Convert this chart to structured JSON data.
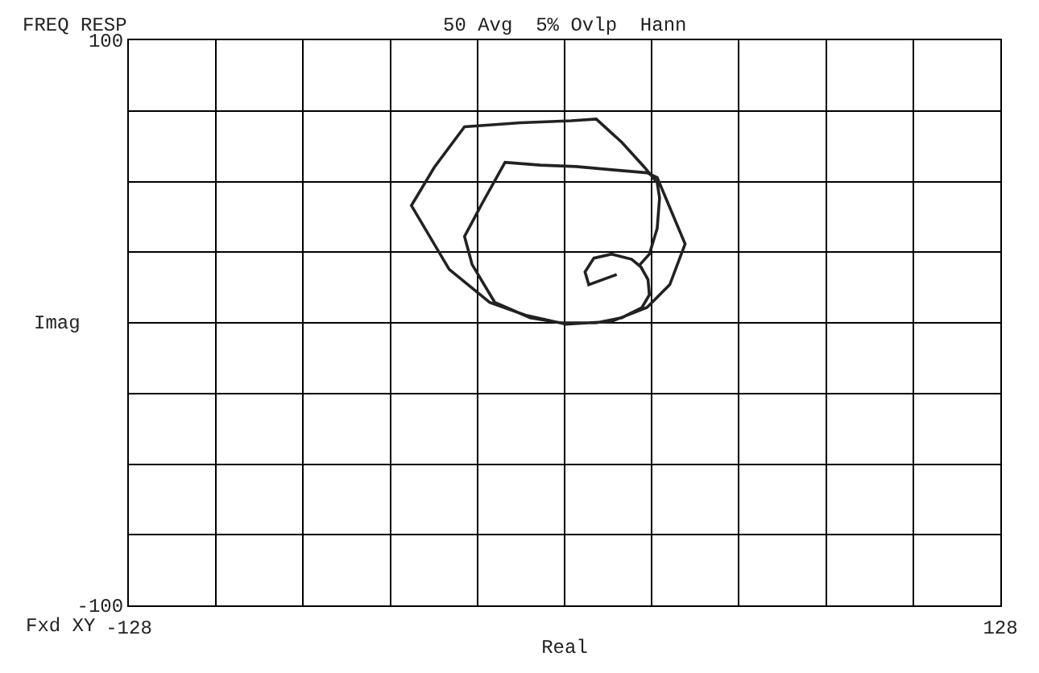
{
  "chart_data": {
    "type": "line",
    "title": "FREQ RESP",
    "subtitle": "50 Avg  5% Ovlp  Hann",
    "xlabel": "Real",
    "ylabel": "Imag",
    "annotations": [
      "Fxd XY"
    ],
    "x": [
      15.3,
      7.1,
      6.0,
      8.6,
      13.8,
      19.7,
      22.4,
      24.5,
      24.9,
      22.7,
      16.8,
      9.3,
      -1.1,
      -10.1,
      -20.5,
      -27.2,
      -29.4,
      -24.2,
      -17.5,
      -7.1,
      3.4,
      14.5,
      24.2,
      27.2,
      35.4,
      30.9,
      24.2,
      13.8,
      0.4,
      -11.5,
      -22.0,
      -33.9,
      -45.0,
      -38.3,
      -29.4,
      -13.0,
      1.9,
      9.3,
      16.8,
      23.5,
      27.2,
      27.9,
      27.2,
      24.9,
      22.0
    ],
    "series": [
      {
        "color": "#222222",
        "values": [
          17.1,
          13.5,
          18.0,
          22.9,
          24.3,
          22.5,
          19.8,
          15.3,
          9.9,
          5.4,
          1.8,
          0,
          0,
          1.8,
          7.2,
          20.7,
          30.6,
          42.3,
          56.8,
          55.8,
          55.3,
          54.1,
          53.1,
          51.4,
          27.9,
          13.5,
          5.4,
          0.5,
          -0.5,
          2.7,
          7.2,
          18.9,
          41.5,
          55.0,
          69.4,
          70.8,
          71.5,
          72.1,
          63.9,
          55.0,
          49.6,
          44.2,
          33.4,
          24.3,
          20.4
        ]
      }
    ],
    "xlim": [
      -128,
      128
    ],
    "xticks": [
      -128,
      {
        "value": -102.4,
        "label": null
      },
      {
        "value": -76.8,
        "label": null
      },
      {
        "value": -51.2,
        "label": null
      },
      {
        "value": -25.6,
        "label": null
      },
      {
        "value": 0,
        "label": null
      },
      {
        "value": 25.6,
        "label": null
      },
      {
        "value": 51.2,
        "label": null
      },
      {
        "value": 76.8,
        "label": null
      },
      {
        "value": 102.4,
        "label": null
      },
      128
    ],
    "ylim": [
      -100,
      100
    ],
    "yticks": [
      -100,
      {
        "value": -75,
        "label": null
      },
      {
        "value": -50,
        "label": null
      },
      {
        "value": -25,
        "label": null
      },
      {
        "value": 0,
        "label": null
      },
      {
        "value": 25,
        "label": null
      },
      {
        "value": 50,
        "label": null
      },
      {
        "value": 75,
        "label": null
      },
      100
    ],
    "grid": true,
    "marker": "none",
    "line_style": "solid"
  }
}
